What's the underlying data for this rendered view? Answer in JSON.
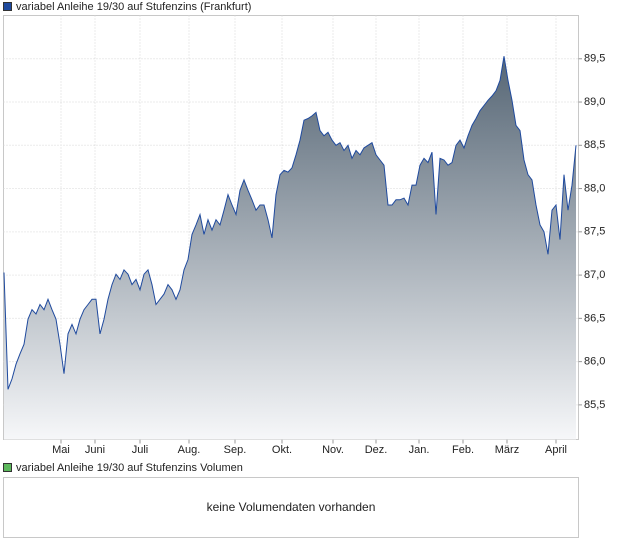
{
  "chart_data": {
    "type": "line",
    "series": [
      {
        "name": "variabel Anleihe 19/30 auf Stufenzins (Frankfurt)",
        "color": "#1f4a9e",
        "values": [
          87.03,
          85.68,
          85.8,
          85.97,
          86.09,
          86.2,
          86.49,
          86.6,
          86.55,
          86.66,
          86.6,
          86.72,
          86.6,
          86.49,
          86.2,
          85.86,
          86.32,
          86.43,
          86.32,
          86.49,
          86.6,
          86.66,
          86.72,
          86.72,
          86.32,
          86.49,
          86.72,
          86.89,
          87.01,
          86.95,
          87.06,
          87.01,
          86.89,
          86.95,
          86.83,
          87.01,
          87.06,
          86.89,
          86.66,
          86.72,
          86.78,
          86.89,
          86.83,
          86.72,
          86.83,
          87.06,
          87.18,
          87.47,
          87.58,
          87.7,
          87.47,
          87.64,
          87.52,
          87.64,
          87.58,
          87.75,
          87.93,
          87.81,
          87.7,
          87.98,
          88.1,
          87.98,
          87.87,
          87.75,
          87.81,
          87.81,
          87.64,
          87.43,
          87.93,
          88.16,
          88.21,
          88.19,
          88.24,
          88.39,
          88.56,
          88.79,
          88.81,
          88.84,
          88.88,
          88.67,
          88.61,
          88.65,
          88.56,
          88.5,
          88.53,
          88.44,
          88.5,
          88.35,
          88.44,
          88.39,
          88.47,
          88.5,
          88.53,
          88.39,
          88.33,
          88.27,
          87.81,
          87.81,
          87.87,
          87.87,
          87.89,
          87.81,
          88.04,
          88.04,
          88.27,
          88.35,
          88.3,
          88.42,
          87.7,
          88.35,
          88.33,
          88.27,
          88.3,
          88.5,
          88.56,
          88.47,
          88.61,
          88.73,
          88.81,
          88.9,
          88.96,
          89.02,
          89.07,
          89.13,
          89.25,
          89.53,
          89.25,
          89.02,
          88.73,
          88.67,
          88.33,
          88.16,
          88.1,
          87.81,
          87.58,
          87.5,
          87.24,
          87.75,
          87.81,
          87.41,
          88.16,
          87.75,
          88.04,
          88.5
        ]
      }
    ],
    "xlim": [
      0,
      143
    ],
    "xticks": [
      {
        "value": 14.25,
        "label": "Mai"
      },
      {
        "value": 22.75,
        "label": "Juni"
      },
      {
        "value": 34,
        "label": "Juli"
      },
      {
        "value": 46.25,
        "label": "Aug."
      },
      {
        "value": 57.75,
        "label": "Sep."
      },
      {
        "value": 69.5,
        "label": "Okt."
      },
      {
        "value": 82.25,
        "label": "Nov."
      },
      {
        "value": 93,
        "label": "Dez."
      },
      {
        "value": 103.75,
        "label": "Jan."
      },
      {
        "value": 114.75,
        "label": "Feb."
      },
      {
        "value": 125.75,
        "label": "März"
      },
      {
        "value": 138,
        "label": "April"
      }
    ],
    "ylim": [
      85.1,
      90.0
    ],
    "yticks": [
      {
        "value": 85.5,
        "label": "85,5"
      },
      {
        "value": 86.0,
        "label": "86,0"
      },
      {
        "value": 86.5,
        "label": "86,5"
      },
      {
        "value": 87.0,
        "label": "87,0"
      },
      {
        "value": 87.5,
        "label": "87,5"
      },
      {
        "value": 88.0,
        "label": "88,0"
      },
      {
        "value": 88.5,
        "label": "88,5"
      },
      {
        "value": 89.0,
        "label": "89,0"
      },
      {
        "value": 89.5,
        "label": "89,5"
      }
    ],
    "grid": true
  },
  "volume_panel": {
    "legend": "variabel Anleihe 19/30 auf Stufenzins Volumen",
    "color": "#5cb85c",
    "message": "keine Volumendaten vorhanden"
  }
}
